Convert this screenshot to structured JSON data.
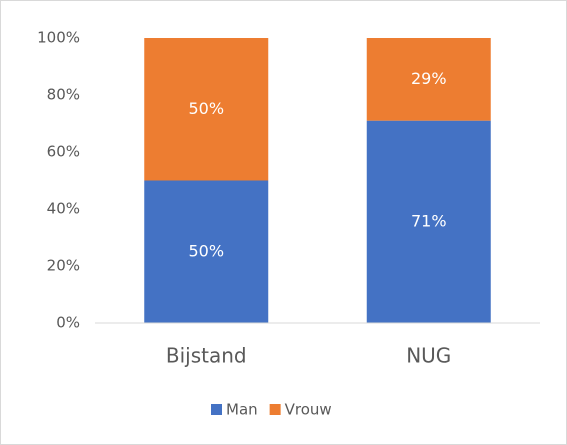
{
  "chart_data": {
    "type": "stacked_bar",
    "categories": [
      "Bijstand",
      "NUG"
    ],
    "series": [
      {
        "name": "Man",
        "color": "#4472c4",
        "values": [
          50,
          71
        ],
        "value_labels": [
          "50%",
          "71%"
        ]
      },
      {
        "name": "Vrouw",
        "color": "#ed7d31",
        "values": [
          50,
          29
        ],
        "value_labels": [
          "50%",
          "29%"
        ]
      }
    ],
    "ylim": [
      0,
      100
    ],
    "yticks": [
      {
        "value": 0,
        "label": "0%"
      },
      {
        "value": 20,
        "label": "20%"
      },
      {
        "value": 40,
        "label": "40%"
      },
      {
        "value": 60,
        "label": "60%"
      },
      {
        "value": 80,
        "label": "80%"
      },
      {
        "value": 100,
        "label": "100%"
      }
    ],
    "grid": false,
    "legend": "bottom"
  }
}
